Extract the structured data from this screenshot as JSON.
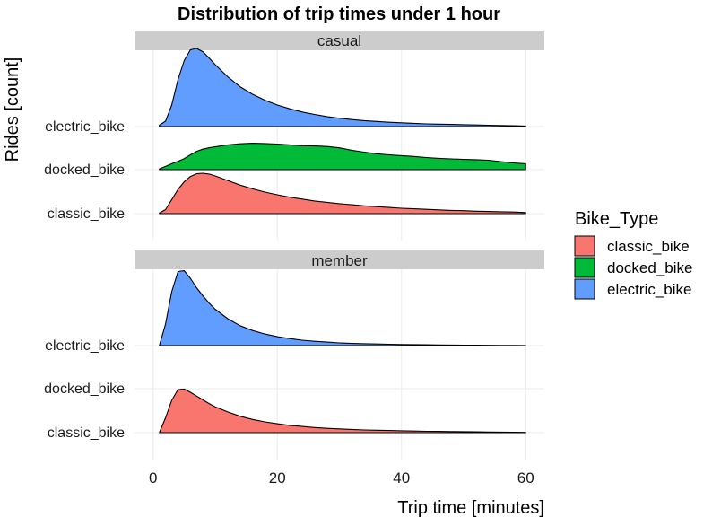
{
  "chart_data": {
    "type": "ridgeline",
    "title": "Distribution of trip times under 1 hour",
    "xlabel": "Trip time [minutes]",
    "ylabel": "Rides [count]",
    "xlim": [
      -3,
      63
    ],
    "x_ticks": [
      0,
      20,
      40,
      60
    ],
    "x_tick_labels": [
      "0",
      "20",
      "40",
      "60"
    ],
    "grid": true,
    "legend": {
      "title": "Bike_Type",
      "position": "right",
      "items": [
        {
          "label": "classic_bike",
          "color": "#F8766D"
        },
        {
          "label": "docked_bike",
          "color": "#00BA38"
        },
        {
          "label": "electric_bike",
          "color": "#619CFF"
        }
      ]
    },
    "y_categories": [
      "classic_bike",
      "docked_bike",
      "electric_bike"
    ],
    "x": [
      1,
      2,
      3,
      4,
      5,
      6,
      7,
      8,
      9,
      10,
      12,
      14,
      16,
      18,
      20,
      22,
      24,
      26,
      28,
      30,
      32,
      34,
      36,
      38,
      40,
      42,
      44,
      46,
      48,
      50,
      52,
      54,
      56,
      58,
      60
    ],
    "facets": [
      {
        "name": "casual",
        "series": [
          {
            "name": "classic_bike",
            "color": "#F8766D",
            "values": [
              0.02,
              0.15,
              0.52,
              0.9,
              1.18,
              1.38,
              1.48,
              1.5,
              1.47,
              1.4,
              1.23,
              1.06,
              0.92,
              0.8,
              0.7,
              0.61,
              0.54,
              0.47,
              0.42,
              0.37,
              0.33,
              0.29,
              0.26,
              0.23,
              0.2,
              0.18,
              0.16,
              0.14,
              0.12,
              0.11,
              0.09,
              0.08,
              0.07,
              0.06,
              0.04
            ]
          },
          {
            "name": "docked_bike",
            "color": "#00BA38",
            "values": [
              0.03,
              0.12,
              0.22,
              0.31,
              0.41,
              0.55,
              0.68,
              0.76,
              0.81,
              0.85,
              0.92,
              0.96,
              0.98,
              0.97,
              0.95,
              0.92,
              0.89,
              0.88,
              0.86,
              0.81,
              0.72,
              0.65,
              0.59,
              0.55,
              0.52,
              0.49,
              0.45,
              0.42,
              0.4,
              0.38,
              0.37,
              0.35,
              0.3,
              0.25,
              0.22
            ]
          },
          {
            "name": "electric_bike",
            "color": "#619CFF",
            "values": [
              0.05,
              0.2,
              0.8,
              1.75,
              2.45,
              2.85,
              2.9,
              2.78,
              2.55,
              2.3,
              1.85,
              1.48,
              1.2,
              0.98,
              0.8,
              0.66,
              0.54,
              0.45,
              0.37,
              0.31,
              0.26,
              0.22,
              0.19,
              0.16,
              0.14,
              0.12,
              0.1,
              0.09,
              0.08,
              0.07,
              0.06,
              0.05,
              0.04,
              0.03,
              0.02
            ]
          }
        ]
      },
      {
        "name": "member",
        "series": [
          {
            "name": "classic_bike",
            "color": "#F8766D",
            "values": [
              0.0,
              0.55,
              1.2,
              1.6,
              1.62,
              1.5,
              1.36,
              1.22,
              1.08,
              0.96,
              0.77,
              0.61,
              0.49,
              0.4,
              0.33,
              0.27,
              0.23,
              0.19,
              0.16,
              0.14,
              0.12,
              0.1,
              0.09,
              0.08,
              0.07,
              0.06,
              0.05,
              0.045,
              0.04,
              0.035,
              0.03,
              0.025,
              0.02,
              0.015,
              0.01
            ]
          },
          {
            "name": "docked_bike",
            "color": "#00BA38",
            "values": [
              0,
              0,
              0,
              0,
              0,
              0,
              0,
              0,
              0,
              0,
              0,
              0,
              0,
              0,
              0,
              0,
              0,
              0,
              0,
              0,
              0,
              0,
              0,
              0,
              0,
              0,
              0,
              0,
              0,
              0,
              0,
              0,
              0,
              0,
              0
            ]
          },
          {
            "name": "electric_bike",
            "color": "#619CFF",
            "values": [
              0.0,
              0.8,
              2.0,
              2.75,
              2.78,
              2.5,
              2.15,
              1.85,
              1.58,
              1.35,
              1.0,
              0.74,
              0.56,
              0.43,
              0.33,
              0.26,
              0.2,
              0.16,
              0.13,
              0.1,
              0.08,
              0.07,
              0.06,
              0.05,
              0.04,
              0.035,
              0.03,
              0.025,
              0.02,
              0.015,
              0.012,
              0.01,
              0.008,
              0.006,
              0.005
            ]
          }
        ]
      }
    ]
  }
}
